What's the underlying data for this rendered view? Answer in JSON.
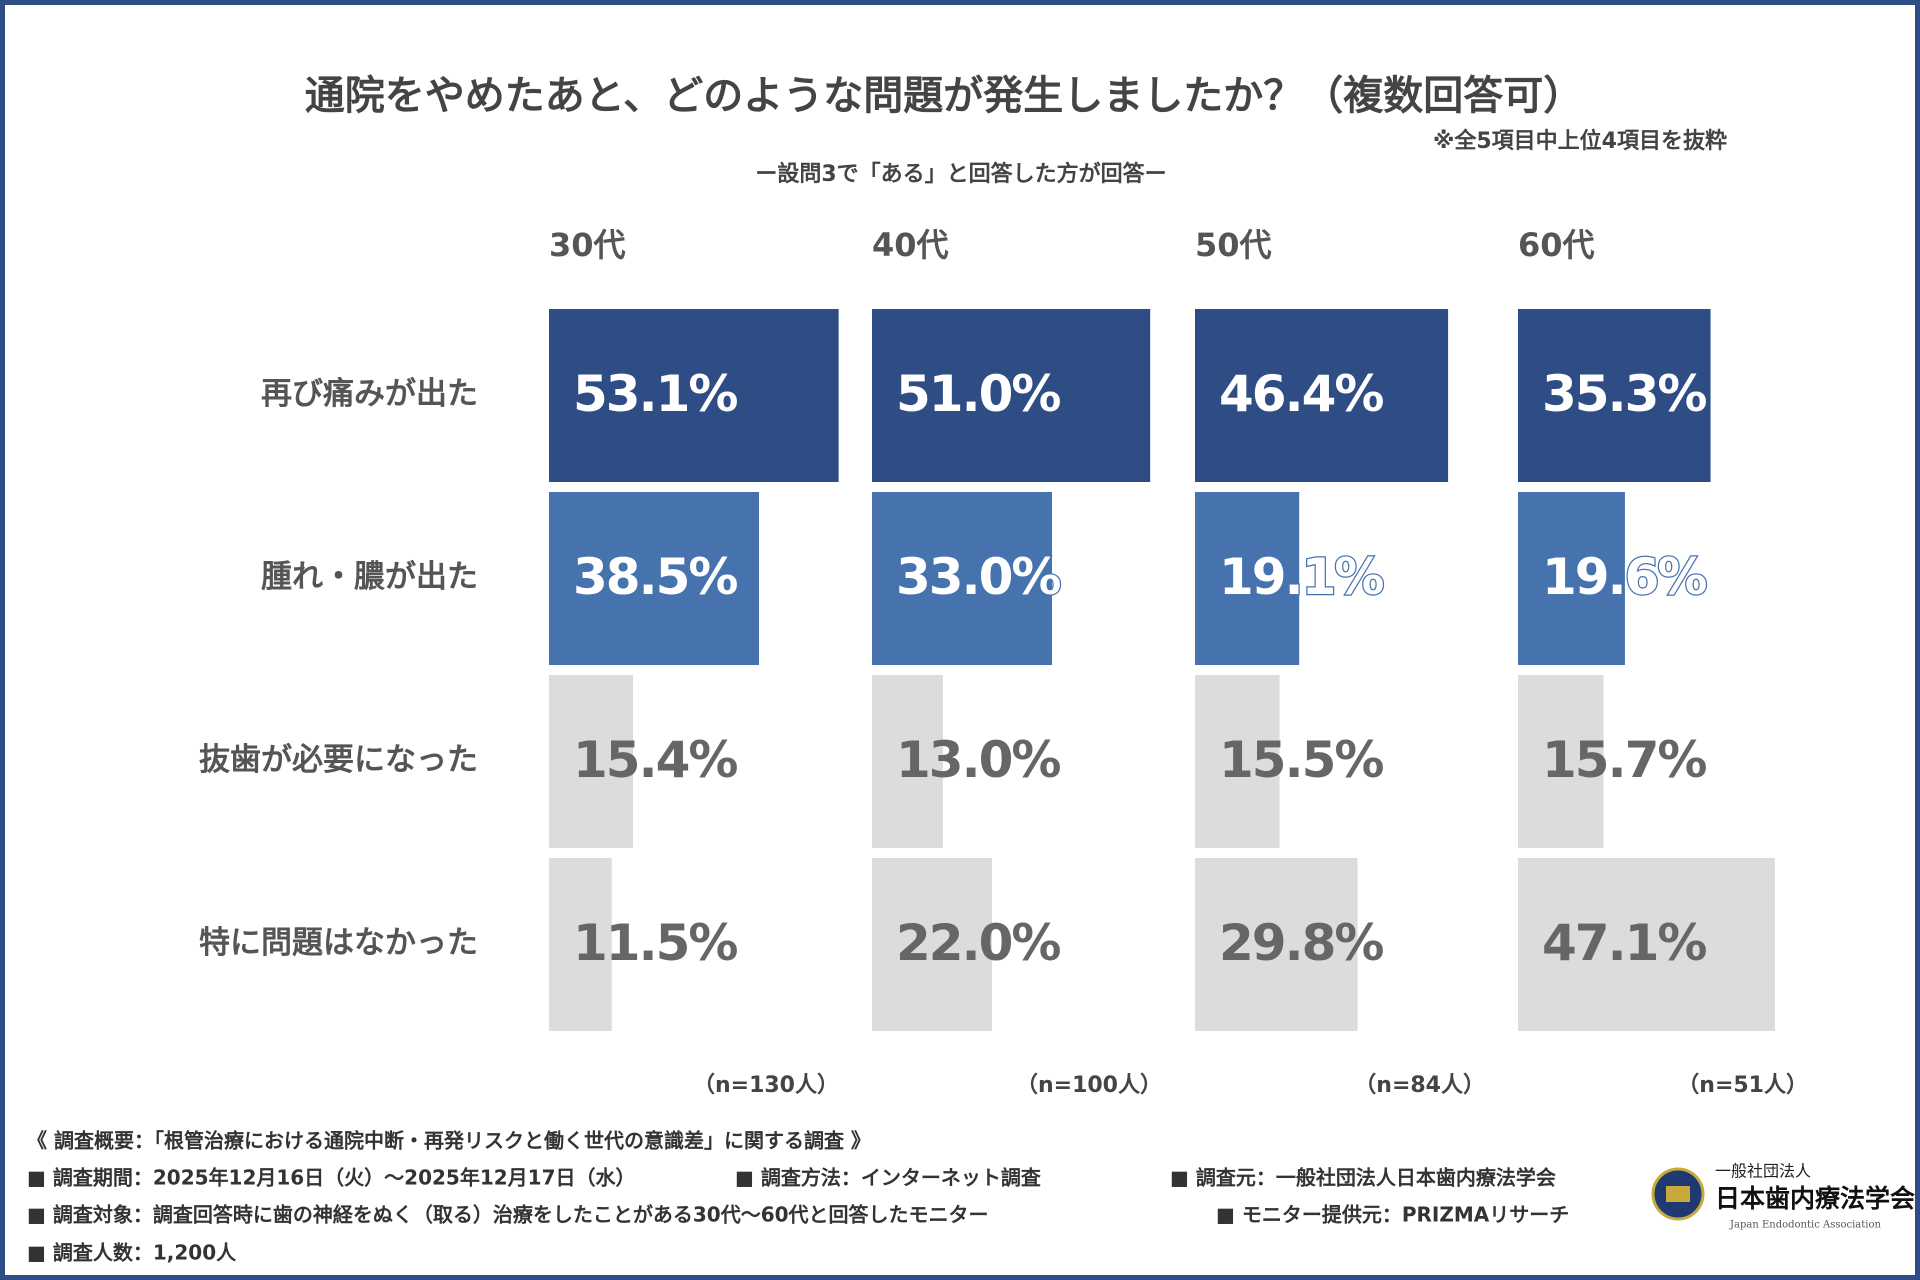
{
  "chart_data": {
    "type": "bar",
    "orientation": "horizontal",
    "title": "通院をやめたあと、どのような問題が発生しましたか？（複数回答可）",
    "note": "※全5項目中上位4項目を抜粋",
    "subtitle": "ー設問3で「ある」と回答した方が回答ー",
    "categories": [
      "再び痛みが出た",
      "腫れ・膿が出た",
      "抜歯が必要になった",
      "特に問題はなかった"
    ],
    "colors": [
      "#2e4d85",
      "#4673ae",
      "#dcdcdc",
      "#dcdcdc"
    ],
    "label_colors": [
      "#ffffff",
      "#ffffff",
      "#666666",
      "#666666"
    ],
    "xlim": [
      0,
      55
    ],
    "series": [
      {
        "name": "30代",
        "sample": "（n=130人）",
        "values": [
          53.1,
          38.5,
          15.4,
          11.5
        ],
        "value_labels": [
          "53.1%",
          "38.5%",
          "15.4%",
          "11.5%"
        ]
      },
      {
        "name": "40代",
        "sample": "（n=100人）",
        "values": [
          51.0,
          33.0,
          13.0,
          22.0
        ],
        "value_labels": [
          "51.0%",
          "33.0%",
          "13.0%",
          "22.0%"
        ]
      },
      {
        "name": "50代",
        "sample": "（n=84人）",
        "values": [
          46.4,
          19.1,
          15.5,
          29.8
        ],
        "value_labels": [
          "46.4%",
          "19.1%",
          "15.5%",
          "29.8%"
        ]
      },
      {
        "name": "60代",
        "sample": "（n=51人）",
        "values": [
          35.3,
          19.6,
          15.7,
          47.1
        ],
        "value_labels": [
          "35.3%",
          "19.6%",
          "15.7%",
          "47.1%"
        ]
      }
    ]
  },
  "survey": {
    "heading": "《 調査概要：「根管治療における通院中断・再発リスクと働く世代の意識差」に関する調査 》",
    "items": [
      "■ 調査期間：2025年12月16日（火）〜2025年12月17日（水）",
      "■ 調査方法：インターネット調査",
      "■ 調査元：一般社団法人日本歯内療法学会",
      "■ 調査対象：調査回答時に歯の神経をぬく（取る）治療をしたことがある30代〜60代と回答したモニター",
      "■ モニター提供元：PRIZMAリサーチ",
      "■ 調査人数：1,200人"
    ]
  },
  "logo": {
    "small": "一般社団法人",
    "name": "日本歯内療法学会",
    "english": "Japan Endodontic Association"
  }
}
